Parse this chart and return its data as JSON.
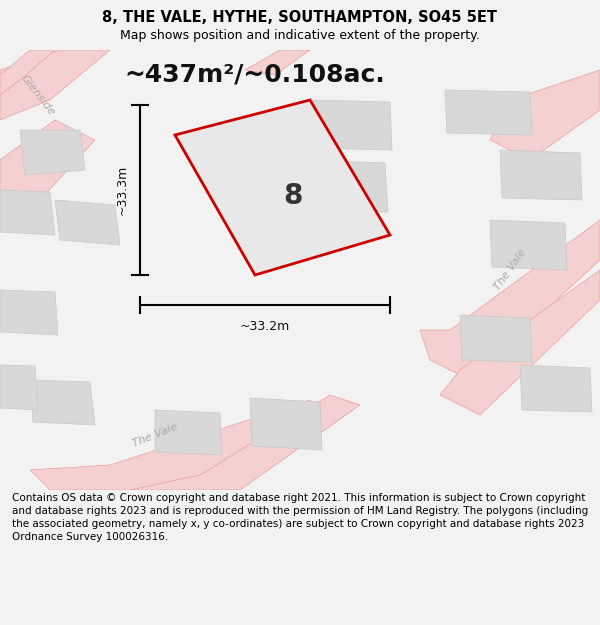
{
  "title": "8, THE VALE, HYTHE, SOUTHAMPTON, SO45 5ET",
  "subtitle": "Map shows position and indicative extent of the property.",
  "area_text": "~437m²/~0.108ac.",
  "property_number": "8",
  "dim_width": "~33.2m",
  "dim_height": "~33.3m",
  "footer": "Contains OS data © Crown copyright and database right 2021. This information is subject to Crown copyright and database rights 2023 and is reproduced with the permission of HM Land Registry. The polygons (including the associated geometry, namely x, y co-ordinates) are subject to Crown copyright and database rights 2023 Ordnance Survey 100026316.",
  "bg_color": "#f2f2f2",
  "map_bg": "#f0f0f0",
  "road_color": "#f5d0d0",
  "road_edge": "#e8a0a0",
  "building_color": "#d8d8d8",
  "building_edge": "#c8c8c8",
  "property_fill": "#e8e8e8",
  "property_edge": "#cc0000",
  "title_fontsize": 10.5,
  "subtitle_fontsize": 9,
  "area_fontsize": 18,
  "footer_fontsize": 7.5
}
